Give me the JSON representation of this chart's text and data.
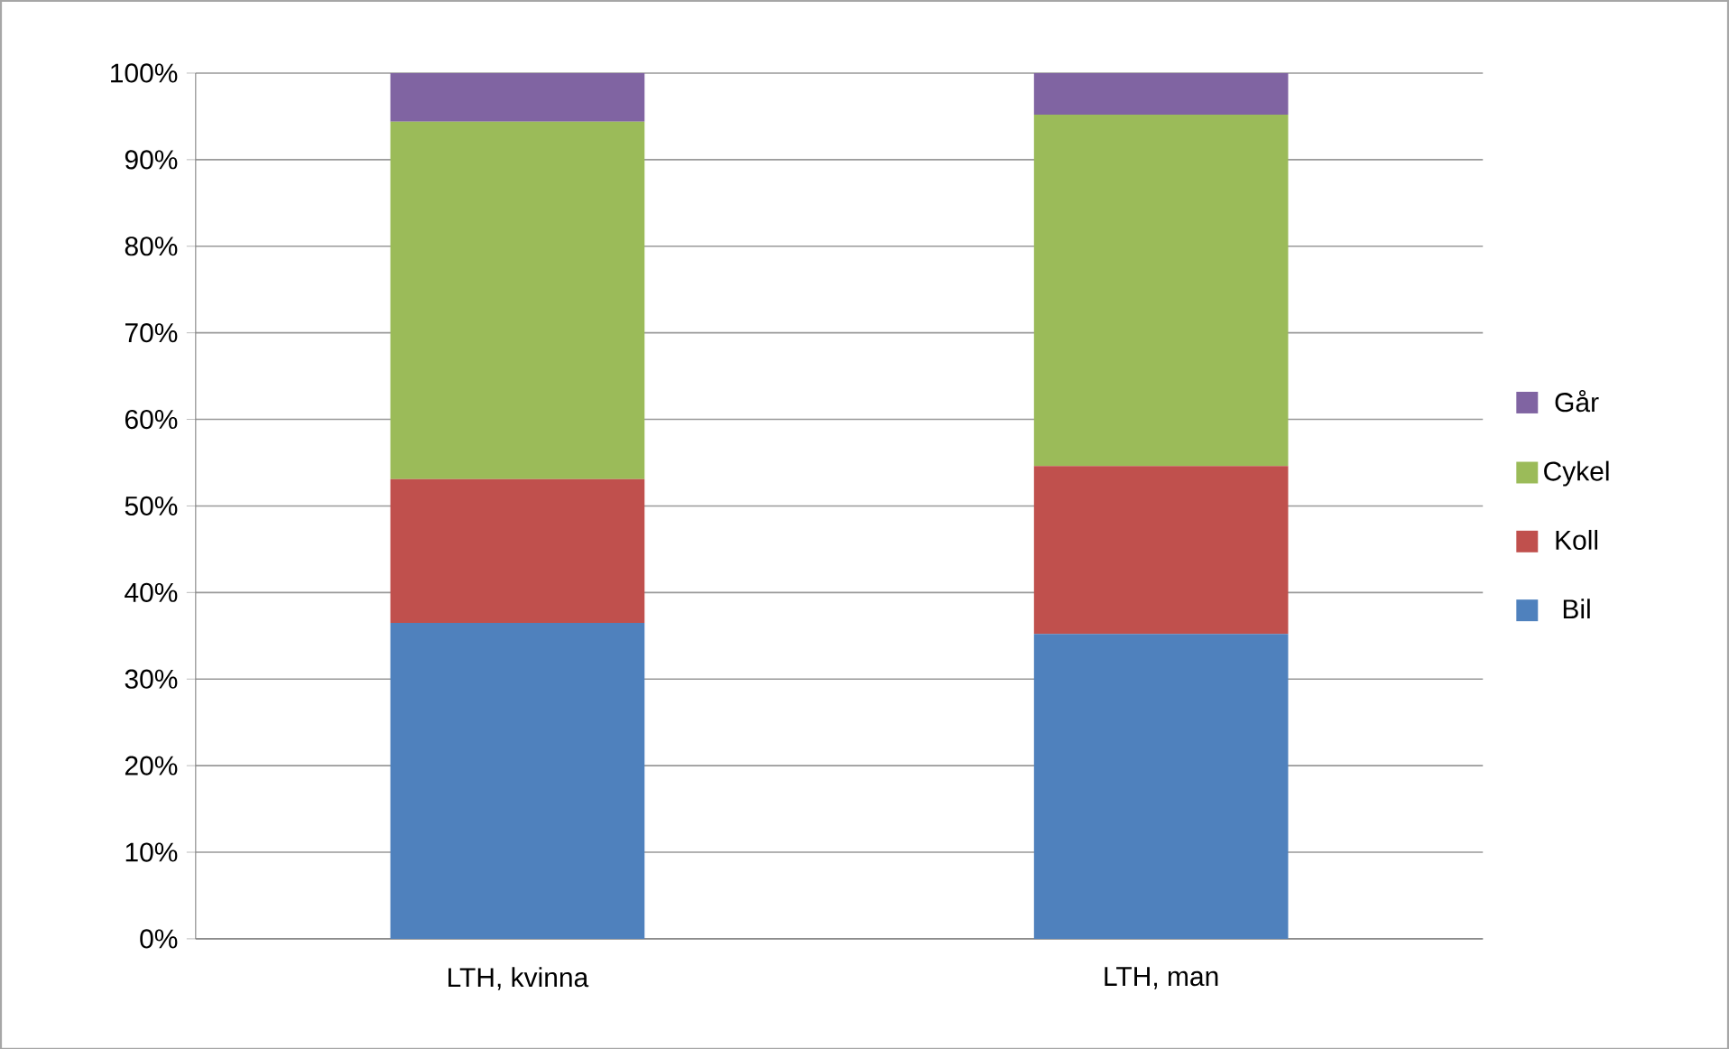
{
  "chart_data": {
    "type": "bar",
    "stacked": true,
    "categories": [
      "LTH, kvinna",
      "LTH, man"
    ],
    "series": [
      {
        "name": "Bil",
        "color": "#4f81bd",
        "values": [
          36.5,
          35.2
        ]
      },
      {
        "name": "Koll",
        "color": "#c0504d",
        "values": [
          16.6,
          19.4
        ]
      },
      {
        "name": "Cykel",
        "color": "#9bbb59",
        "values": [
          41.3,
          40.6
        ]
      },
      {
        "name": "Går",
        "color": "#8064a2",
        "values": [
          5.6,
          4.8
        ]
      }
    ],
    "ylim": [
      0,
      100
    ],
    "yticks": [
      {
        "value": 0,
        "label": "0%"
      },
      {
        "value": 10,
        "label": "10%"
      },
      {
        "value": 20,
        "label": "20%"
      },
      {
        "value": 30,
        "label": "30%"
      },
      {
        "value": 40,
        "label": "40%"
      },
      {
        "value": 50,
        "label": "50%"
      },
      {
        "value": 60,
        "label": "60%"
      },
      {
        "value": 70,
        "label": "70%"
      },
      {
        "value": 80,
        "label": "80%"
      },
      {
        "value": 90,
        "label": "90%"
      },
      {
        "value": 100,
        "label": "100%"
      }
    ],
    "grid": "y",
    "legend": "right"
  }
}
